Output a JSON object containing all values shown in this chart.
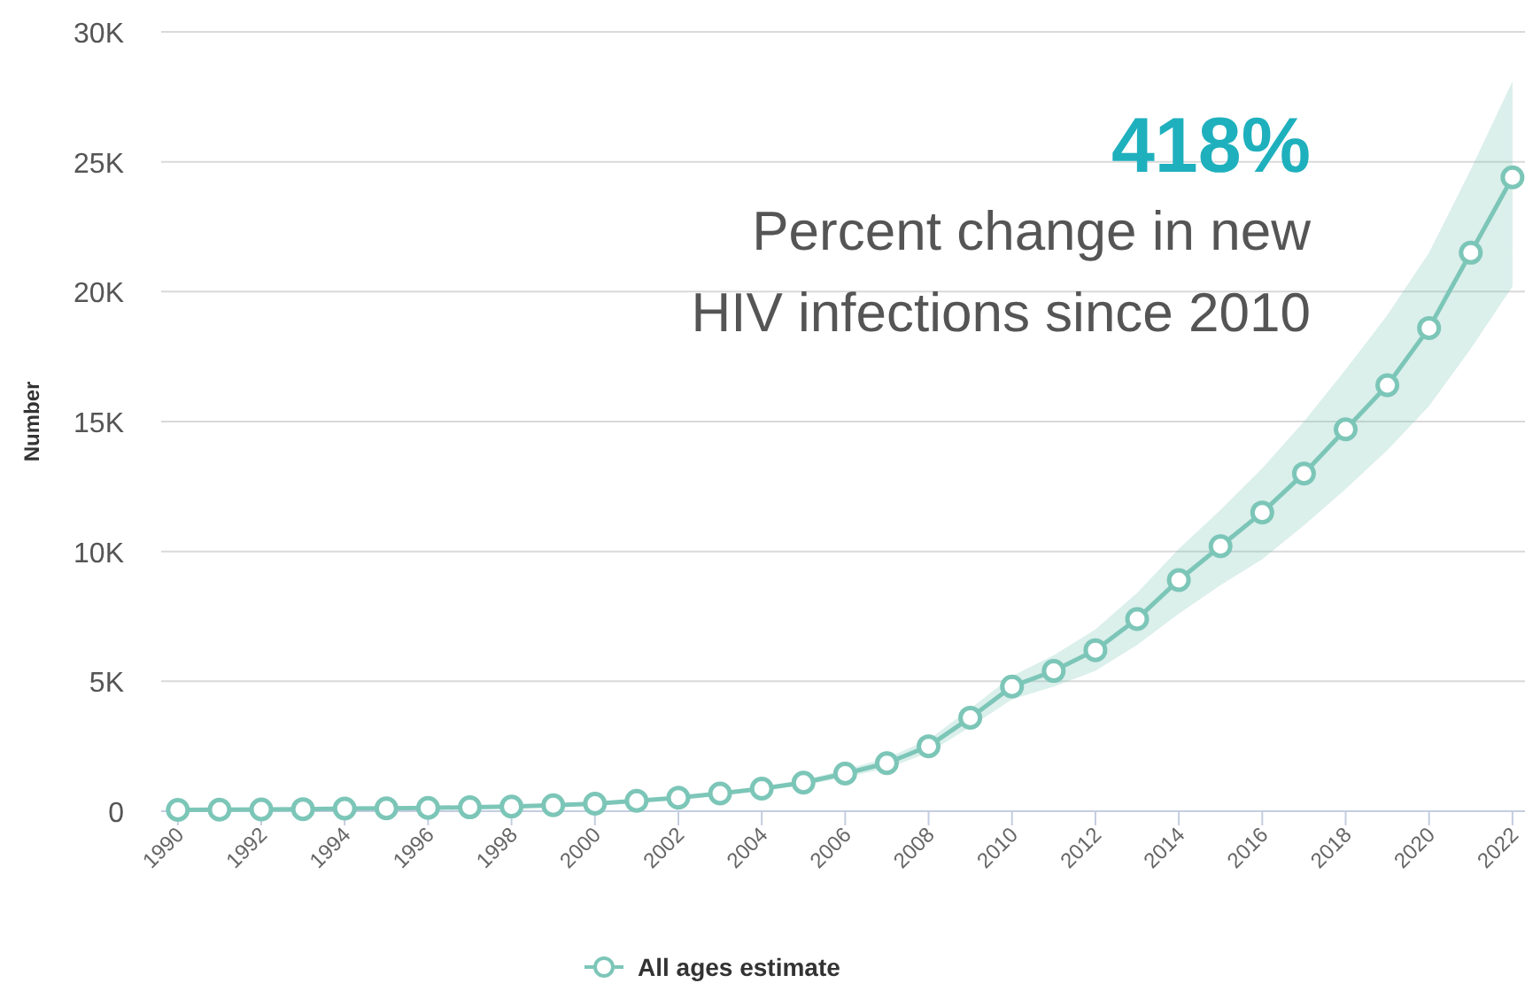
{
  "chart_data": {
    "type": "line",
    "ylabel": "Number",
    "annotations": [
      "418%",
      "Percent change in new HIV infections since 2010"
    ],
    "x": [
      1990,
      1991,
      1992,
      1993,
      1994,
      1995,
      1996,
      1997,
      1998,
      1999,
      2000,
      2001,
      2002,
      2003,
      2004,
      2005,
      2006,
      2007,
      2008,
      2009,
      2010,
      2011,
      2012,
      2013,
      2014,
      2015,
      2016,
      2017,
      2018,
      2019,
      2020,
      2021,
      2022
    ],
    "series": [
      {
        "name": "All ages estimate",
        "color": "#7cc6b8",
        "values": [
          50,
          60,
          70,
          80,
          100,
          110,
          130,
          150,
          180,
          230,
          290,
          400,
          520,
          680,
          870,
          1100,
          1450,
          1850,
          2500,
          3600,
          4800,
          5400,
          6200,
          7400,
          8900,
          10200,
          11500,
          13000,
          14700,
          16400,
          18600,
          21500,
          24400
        ],
        "lower": [
          45,
          55,
          65,
          75,
          90,
          100,
          120,
          140,
          165,
          210,
          265,
          370,
          480,
          630,
          800,
          1000,
          1300,
          1650,
          2250,
          3250,
          4300,
          4800,
          5400,
          6400,
          7600,
          8700,
          9700,
          11000,
          12400,
          13900,
          15600,
          17800,
          20200
        ],
        "upper": [
          55,
          65,
          75,
          85,
          110,
          120,
          140,
          160,
          195,
          250,
          315,
          430,
          560,
          730,
          940,
          1200,
          1600,
          2050,
          2750,
          3950,
          5200,
          6000,
          7000,
          8400,
          10100,
          11600,
          13200,
          15000,
          17000,
          19100,
          21500,
          24700,
          28100
        ]
      }
    ],
    "xlim": [
      1989.6,
      2022.3
    ],
    "xticks": [
      1990,
      1992,
      1994,
      1996,
      1998,
      2000,
      2002,
      2004,
      2006,
      2008,
      2010,
      2012,
      2014,
      2016,
      2018,
      2020,
      2022
    ],
    "ylim": [
      0,
      30000
    ],
    "yticks": [
      {
        "value": 0,
        "label": "0"
      },
      {
        "value": 5000,
        "label": "5K"
      },
      {
        "value": 10000,
        "label": "10K"
      },
      {
        "value": 15000,
        "label": "15K"
      },
      {
        "value": 20000,
        "label": "20K"
      },
      {
        "value": 25000,
        "label": "25K"
      },
      {
        "value": 30000,
        "label": "30K"
      }
    ],
    "grid": "y",
    "legend": "bottom",
    "marker": "circle",
    "line_style": "solid"
  }
}
